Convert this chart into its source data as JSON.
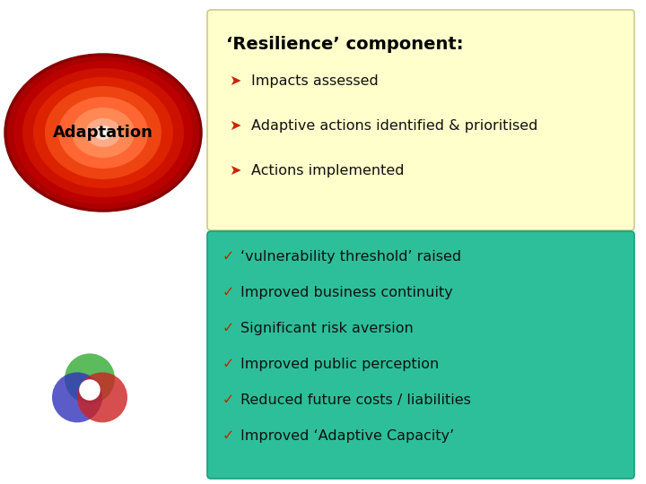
{
  "bg_color": "#ffffff",
  "top_box_bg": "#ffffcc",
  "top_box_border": "#cccc88",
  "bottom_box_bg": "#2dbf9a",
  "bottom_box_border": "#1a9e7e",
  "title": "‘Resilience’ component:",
  "title_color": "#000000",
  "title_fontsize": 14,
  "arrow_color": "#cc2200",
  "bullet_items_top": [
    "➤Impacts assessed",
    "➤Adaptive actions identified & prioritised",
    "➤Actions implemented"
  ],
  "bullet_items_bottom": [
    "✓‘vulnerability threshold’ raised",
    "✓Improved business continuity",
    "✓Significant risk aversion",
    "✓Improved public perception",
    "✓Reduced future costs / liabilities",
    "✓Improved ‘Adaptive Capacity’"
  ],
  "item_fontsize": 11.5,
  "item_color": "#111111",
  "adaptation_label": "Adaptation",
  "adaptation_fontsize": 13,
  "adaptation_text_color": "#000000"
}
